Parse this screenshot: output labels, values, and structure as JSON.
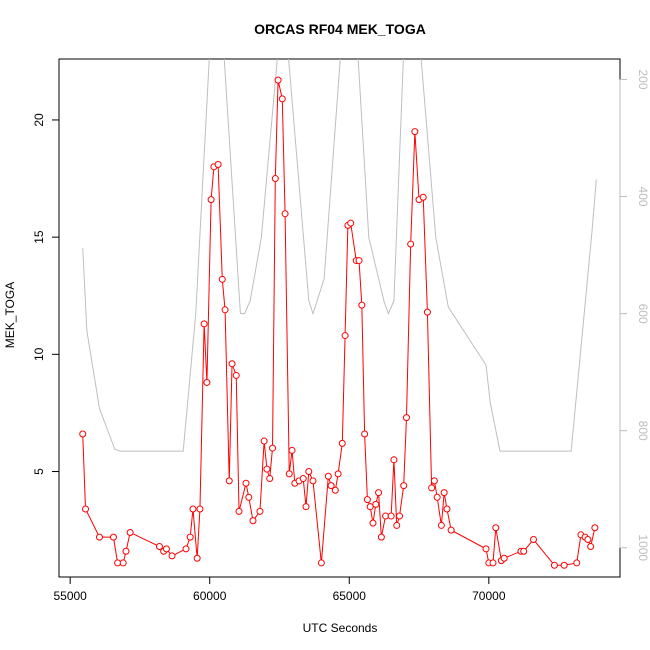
{
  "chart_data": {
    "type": "line",
    "title": "ORCAS RF04 MEK_TOGA",
    "xlabel": "UTC Seconds",
    "ylabel": "MEK_TOGA",
    "xlim": [
      54600,
      74700
    ],
    "ylim": [
      0.5,
      22.6
    ],
    "y2lim": [
      1050,
      165
    ],
    "x_ticks": [
      55000,
      60000,
      65000,
      70000
    ],
    "y_ticks": [
      5,
      10,
      15,
      20
    ],
    "y2_ticks": [
      200,
      400,
      600,
      800,
      1000
    ],
    "grid": false,
    "colors": {
      "series": "#ff0000",
      "altitude": "#bebebe",
      "axis": "#000000",
      "right_axis": "#bdbdbd"
    },
    "series": [
      {
        "values": [
          [
            55450,
            6.6
          ],
          [
            55550,
            3.4
          ],
          [
            56050,
            2.2
          ],
          [
            56550,
            2.2
          ],
          [
            56700,
            1.1
          ],
          [
            56900,
            1.1
          ],
          [
            57000,
            1.6
          ],
          [
            57150,
            2.4
          ],
          [
            58200,
            1.8
          ],
          [
            58350,
            1.6
          ],
          [
            58450,
            1.7
          ],
          [
            58650,
            1.4
          ],
          [
            59150,
            1.7
          ],
          [
            59300,
            2.2
          ],
          [
            59400,
            3.4
          ],
          [
            59550,
            1.3
          ],
          [
            59650,
            3.4
          ],
          [
            59800,
            11.3
          ],
          [
            59900,
            8.8
          ],
          [
            60050,
            16.6
          ],
          [
            60150,
            18.0
          ],
          [
            60300,
            18.1
          ],
          [
            60450,
            13.2
          ],
          [
            60550,
            11.9
          ],
          [
            60700,
            4.6
          ],
          [
            60800,
            9.6
          ],
          [
            60950,
            9.1
          ],
          [
            61050,
            3.3
          ],
          [
            61300,
            4.5
          ],
          [
            61400,
            3.9
          ],
          [
            61550,
            2.9
          ],
          [
            61800,
            3.3
          ],
          [
            61950,
            6.3
          ],
          [
            62050,
            5.1
          ],
          [
            62150,
            4.7
          ],
          [
            62250,
            6.0
          ],
          [
            62350,
            17.5
          ],
          [
            62450,
            21.7
          ],
          [
            62600,
            20.9
          ],
          [
            62700,
            16.0
          ],
          [
            62850,
            4.9
          ],
          [
            62950,
            5.9
          ],
          [
            63050,
            4.5
          ],
          [
            63200,
            4.6
          ],
          [
            63350,
            4.7
          ],
          [
            63450,
            3.5
          ],
          [
            63550,
            5.0
          ],
          [
            63700,
            4.6
          ],
          [
            64000,
            1.1
          ],
          [
            64250,
            4.8
          ],
          [
            64350,
            4.4
          ],
          [
            64500,
            4.2
          ],
          [
            64600,
            4.9
          ],
          [
            64750,
            6.2
          ],
          [
            64850,
            10.8
          ],
          [
            64950,
            15.5
          ],
          [
            65050,
            15.6
          ],
          [
            65250,
            14.0
          ],
          [
            65350,
            14.0
          ],
          [
            65450,
            12.1
          ],
          [
            65550,
            6.6
          ],
          [
            65650,
            3.8
          ],
          [
            65750,
            3.5
          ],
          [
            65850,
            2.8
          ],
          [
            65950,
            3.6
          ],
          [
            66050,
            4.1
          ],
          [
            66150,
            2.2
          ],
          [
            66300,
            3.1
          ],
          [
            66500,
            3.1
          ],
          [
            66600,
            5.5
          ],
          [
            66700,
            2.7
          ],
          [
            66800,
            3.1
          ],
          [
            66950,
            4.4
          ],
          [
            67050,
            7.3
          ],
          [
            67200,
            14.7
          ],
          [
            67350,
            19.5
          ],
          [
            67500,
            16.6
          ],
          [
            67650,
            16.7
          ],
          [
            67800,
            11.8
          ],
          [
            67950,
            4.3
          ],
          [
            68050,
            4.6
          ],
          [
            68150,
            3.9
          ],
          [
            68300,
            2.7
          ],
          [
            68400,
            4.1
          ],
          [
            68500,
            3.4
          ],
          [
            68650,
            2.5
          ],
          [
            69900,
            1.7
          ],
          [
            70000,
            1.1
          ],
          [
            70150,
            1.1
          ],
          [
            70250,
            2.6
          ],
          [
            70450,
            1.2
          ],
          [
            70550,
            1.3
          ],
          [
            71150,
            1.6
          ],
          [
            71250,
            1.6
          ],
          [
            71600,
            2.1
          ],
          [
            72350,
            1.0
          ],
          [
            72700,
            1.0
          ],
          [
            73150,
            1.1
          ],
          [
            73300,
            2.3
          ],
          [
            73450,
            2.2
          ],
          [
            73550,
            2.1
          ],
          [
            73650,
            1.8
          ],
          [
            73800,
            2.6
          ]
        ]
      },
      {
        "axis": "right",
        "values": [
          [
            55450,
            488
          ],
          [
            55600,
            630
          ],
          [
            56050,
            762
          ],
          [
            56600,
            832
          ],
          [
            56800,
            835
          ],
          [
            57300,
            835
          ],
          [
            58500,
            835
          ],
          [
            59050,
            835
          ],
          [
            59500,
            600
          ],
          [
            60000,
            150
          ],
          [
            60150,
            150
          ],
          [
            60500,
            150
          ],
          [
            61100,
            600
          ],
          [
            61250,
            600
          ],
          [
            61450,
            578
          ],
          [
            61850,
            470
          ],
          [
            62450,
            150
          ],
          [
            62800,
            150
          ],
          [
            63550,
            578
          ],
          [
            63700,
            600
          ],
          [
            63850,
            578
          ],
          [
            64100,
            540
          ],
          [
            64700,
            150
          ],
          [
            65300,
            150
          ],
          [
            65700,
            470
          ],
          [
            66250,
            580
          ],
          [
            66400,
            600
          ],
          [
            66600,
            578
          ],
          [
            66950,
            150
          ],
          [
            67550,
            150
          ],
          [
            68100,
            470
          ],
          [
            68550,
            589
          ],
          [
            69900,
            688
          ],
          [
            70050,
            752
          ],
          [
            70400,
            835
          ],
          [
            71050,
            835
          ],
          [
            72300,
            835
          ],
          [
            72950,
            835
          ],
          [
            73700,
            458
          ],
          [
            73850,
            371
          ]
        ]
      }
    ]
  }
}
